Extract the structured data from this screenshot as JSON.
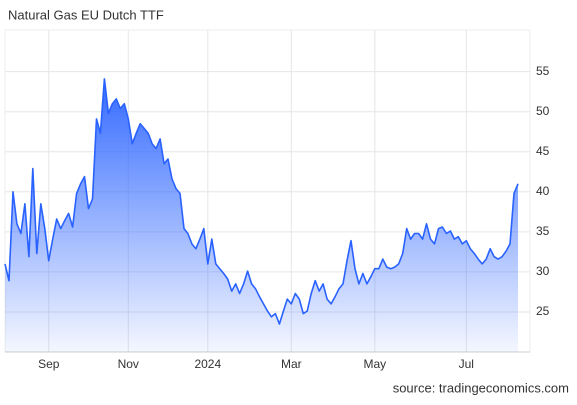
{
  "chart_data": {
    "type": "area",
    "title": "Natural Gas EU Dutch TTF",
    "source": "source: tradingeconomics.com",
    "color": "#2962ff",
    "grid": true,
    "y_axis_side": "right",
    "categories": [
      null,
      null,
      null,
      null,
      null,
      null,
      null,
      null,
      null,
      null,
      null,
      "Sep",
      null,
      null,
      null,
      null,
      null,
      null,
      null,
      null,
      null,
      null,
      null,
      null,
      null,
      null,
      null,
      null,
      null,
      null,
      null,
      "Nov",
      null,
      null,
      null,
      null,
      null,
      null,
      null,
      null,
      null,
      null,
      null,
      null,
      null,
      null,
      null,
      null,
      null,
      null,
      null,
      "2024",
      null,
      null,
      null,
      null,
      null,
      null,
      null,
      null,
      null,
      null,
      null,
      null,
      null,
      null,
      null,
      null,
      null,
      null,
      null,
      null,
      "Mar",
      null,
      null,
      null,
      null,
      null,
      null,
      null,
      null,
      null,
      null,
      null,
      null,
      null,
      null,
      null,
      null,
      null,
      null,
      null,
      null,
      "May",
      null,
      null,
      null,
      null,
      null,
      null,
      null,
      null,
      null,
      null,
      null,
      null,
      null,
      null,
      null,
      null,
      null,
      null,
      null,
      null,
      null,
      null,
      "Jul",
      null,
      null,
      null,
      null,
      null,
      null,
      null,
      null,
      null,
      null,
      null,
      null,
      null
    ],
    "values": [
      31,
      28.9,
      40,
      36,
      34.8,
      38.5,
      31.9,
      42.9,
      32.3,
      38.5,
      35.4,
      31.4,
      34.1,
      36.6,
      35.4,
      36.4,
      37.3,
      35.6,
      39.8,
      41,
      41.9,
      37.9,
      39.1,
      49.1,
      47.3,
      54.1,
      49.8,
      51,
      51.6,
      50.4,
      51,
      49.1,
      46,
      47.3,
      48.5,
      47.9,
      47.3,
      46,
      45.4,
      46.6,
      43.5,
      44.1,
      41.6,
      40.4,
      39.8,
      35.4,
      34.8,
      33.5,
      32.9,
      34.1,
      35.4,
      31,
      34.1,
      31,
      30.4,
      29.8,
      29.1,
      27.6,
      28.5,
      27.3,
      28.5,
      30.1,
      28.5,
      27.9,
      26.9,
      26,
      25.1,
      24.4,
      24.8,
      23.5,
      25.1,
      26.6,
      26,
      27.3,
      26.6,
      24.8,
      25.1,
      27.3,
      28.9,
      27.6,
      28.5,
      26.6,
      26,
      26.9,
      27.9,
      28.5,
      31.4,
      33.9,
      30.4,
      28.5,
      29.8,
      28.5,
      29.4,
      30.4,
      30.4,
      31.6,
      30.6,
      30.4,
      30.6,
      31,
      32.3,
      35.4,
      34.1,
      34.8,
      34.8,
      34.1,
      36,
      34.1,
      33.5,
      35.4,
      35.6,
      34.8,
      35.1,
      34.1,
      34.4,
      33.5,
      33.9,
      32.9,
      32.3,
      31.6,
      31,
      31.6,
      32.9,
      31.9,
      31.6,
      31.9,
      32.6,
      33.5,
      39.8,
      41
    ],
    "ylim": [
      20,
      60.2
    ],
    "yticks": [
      25,
      30,
      35,
      40,
      45,
      50,
      55
    ]
  }
}
